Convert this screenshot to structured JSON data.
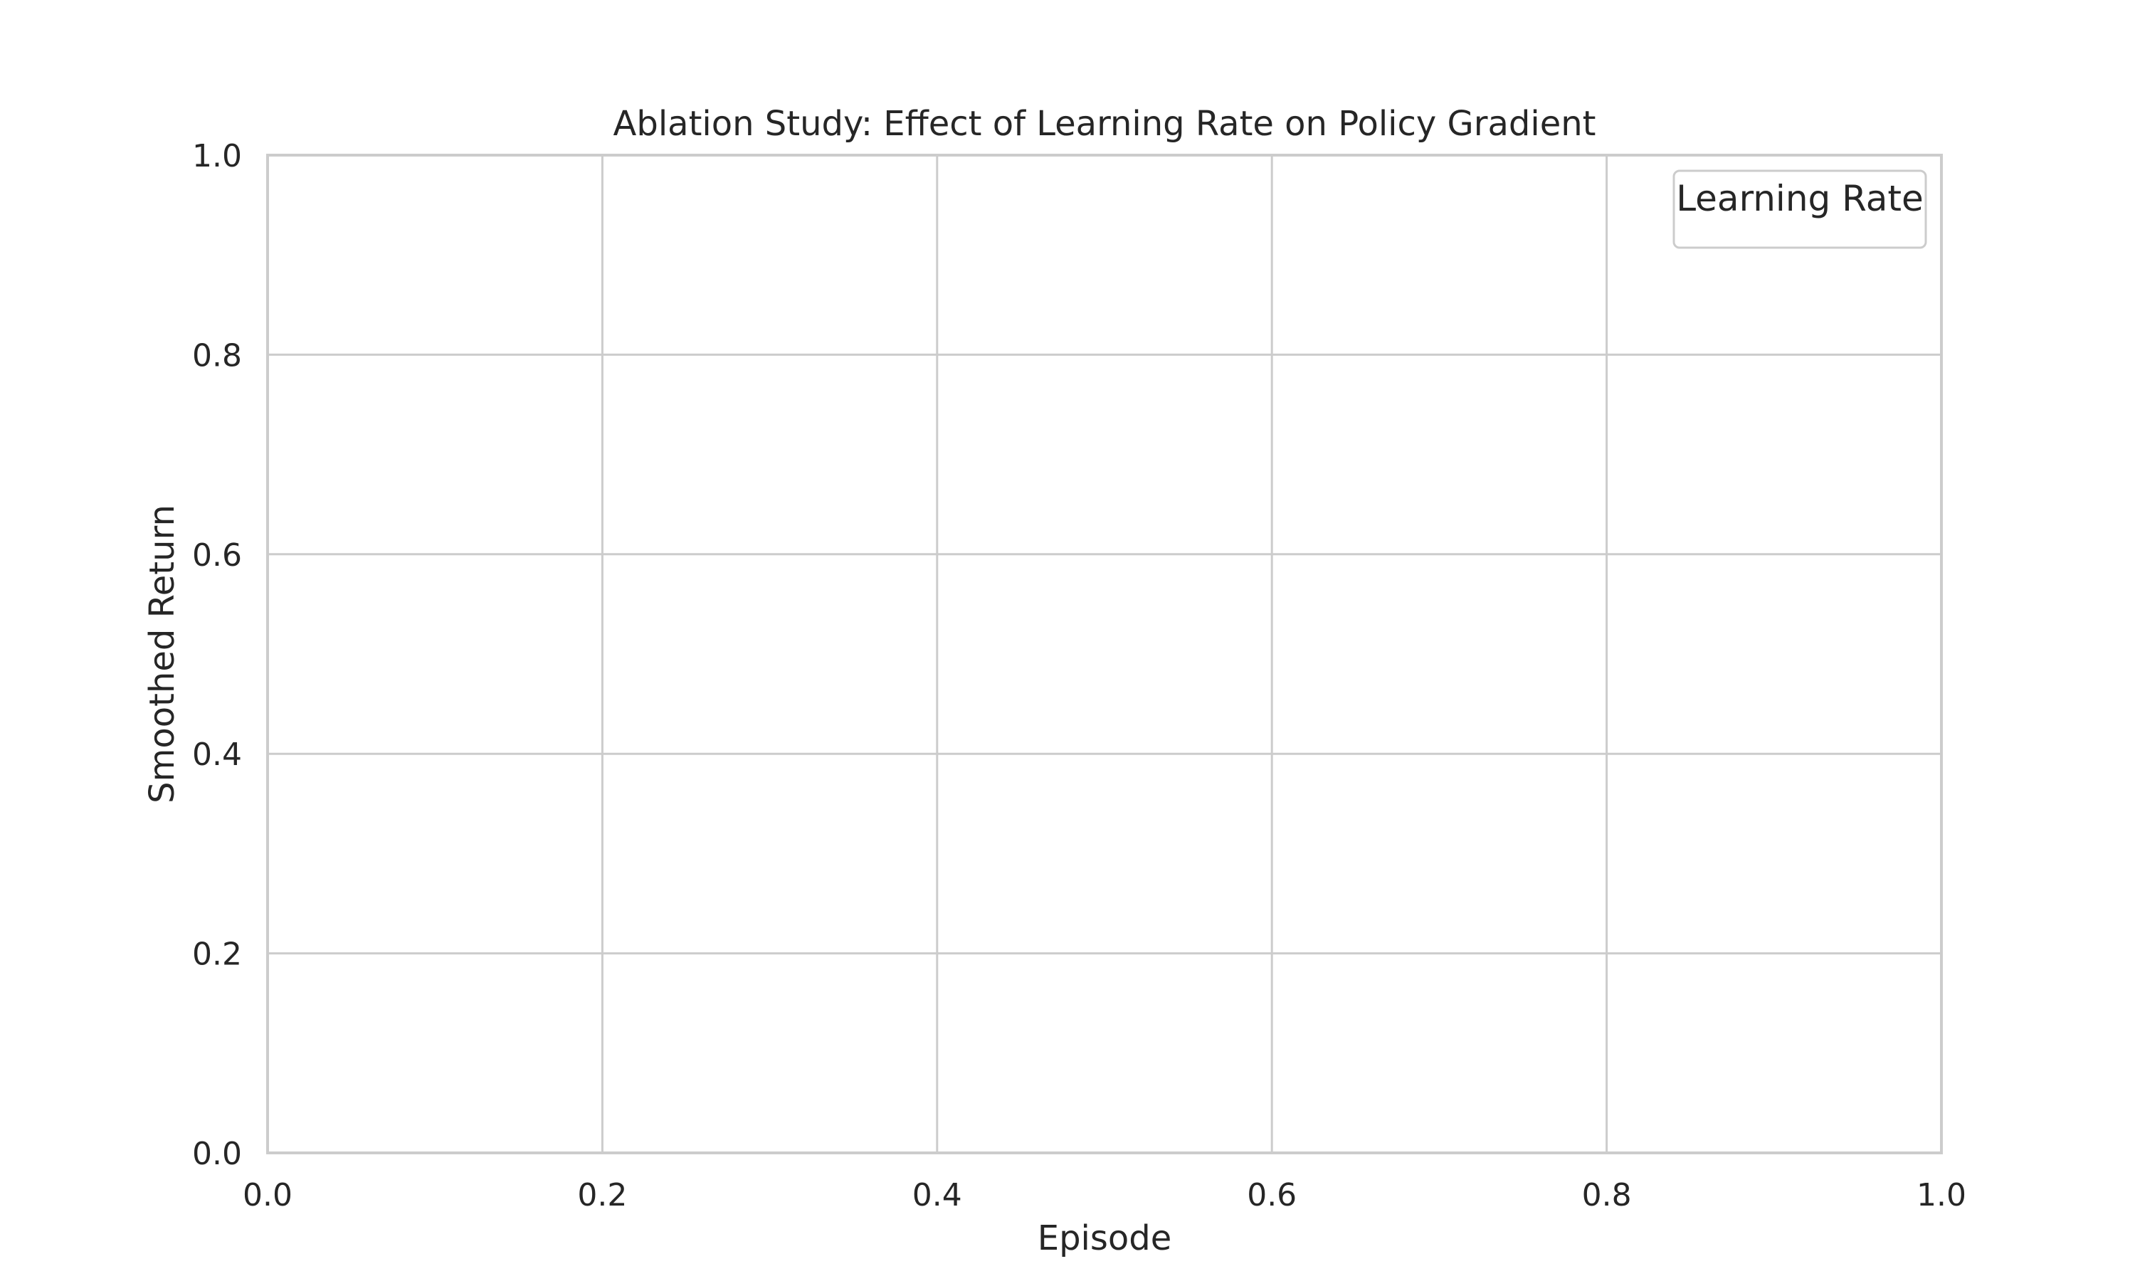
{
  "chart_data": {
    "type": "line",
    "title": "Ablation Study: Effect of Learning Rate on Policy Gradient",
    "xlabel": "Episode",
    "ylabel": "Smoothed Return",
    "xlim": [
      0.0,
      1.0
    ],
    "ylim": [
      0.0,
      1.0
    ],
    "x_ticks": [
      "0.0",
      "0.2",
      "0.4",
      "0.6",
      "0.8",
      "1.0"
    ],
    "y_ticks": [
      "0.0",
      "0.2",
      "0.4",
      "0.6",
      "0.8",
      "1.0"
    ],
    "grid": true,
    "legend": {
      "title": "Learning Rate",
      "placement": "upper right",
      "entries": []
    },
    "series": []
  },
  "colors": {
    "grid": "#cccccc",
    "frame": "#cccccc",
    "text": "#262626",
    "background": "#ffffff"
  }
}
